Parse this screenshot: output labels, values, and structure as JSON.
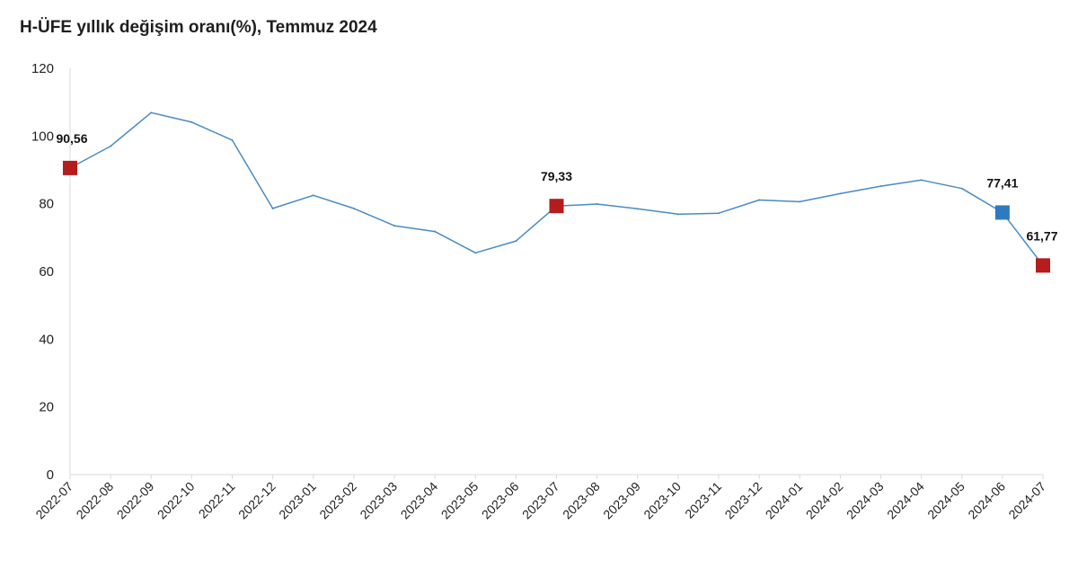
{
  "chart_data": {
    "type": "line",
    "title": "H-ÜFE yıllık değişim oranı(%), Temmuz 2024",
    "xlabel": "",
    "ylabel": "",
    "ylim": [
      0,
      120
    ],
    "yticks": [
      "0",
      "20",
      "40",
      "60",
      "80",
      "100",
      "120"
    ],
    "grid": false,
    "legend": "none",
    "categories": [
      "2022-07",
      "2022-08",
      "2022-09",
      "2022-10",
      "2022-11",
      "2022-12",
      "2023-01",
      "2023-02",
      "2023-03",
      "2023-04",
      "2023-05",
      "2023-06",
      "2023-07",
      "2023-08",
      "2023-09",
      "2023-10",
      "2023-11",
      "2023-12",
      "2024-01",
      "2024-02",
      "2024-03",
      "2024-04",
      "2024-05",
      "2024-06",
      "2024-07"
    ],
    "series": [
      {
        "name": "",
        "color": "#4a8bc4",
        "values": [
          90.56,
          97.0,
          106.9,
          104.1,
          98.8,
          78.6,
          82.5,
          78.6,
          73.5,
          71.8,
          65.5,
          69.0,
          79.33,
          79.9,
          78.5,
          76.9,
          77.2,
          81.1,
          80.6,
          83.0,
          85.2,
          87.0,
          84.5,
          77.41,
          61.77
        ]
      }
    ],
    "markers": [
      {
        "index": 0,
        "label": "90,56",
        "color": "#b51c1c"
      },
      {
        "index": 12,
        "label": "79,33",
        "color": "#b51c1c"
      },
      {
        "index": 23,
        "label": "77,41",
        "color": "#2e7ac0"
      },
      {
        "index": 24,
        "label": "61,77",
        "color": "#b51c1c"
      }
    ],
    "colors": {
      "line": "#4a8bc4",
      "axis": "#d9d9d9"
    }
  }
}
